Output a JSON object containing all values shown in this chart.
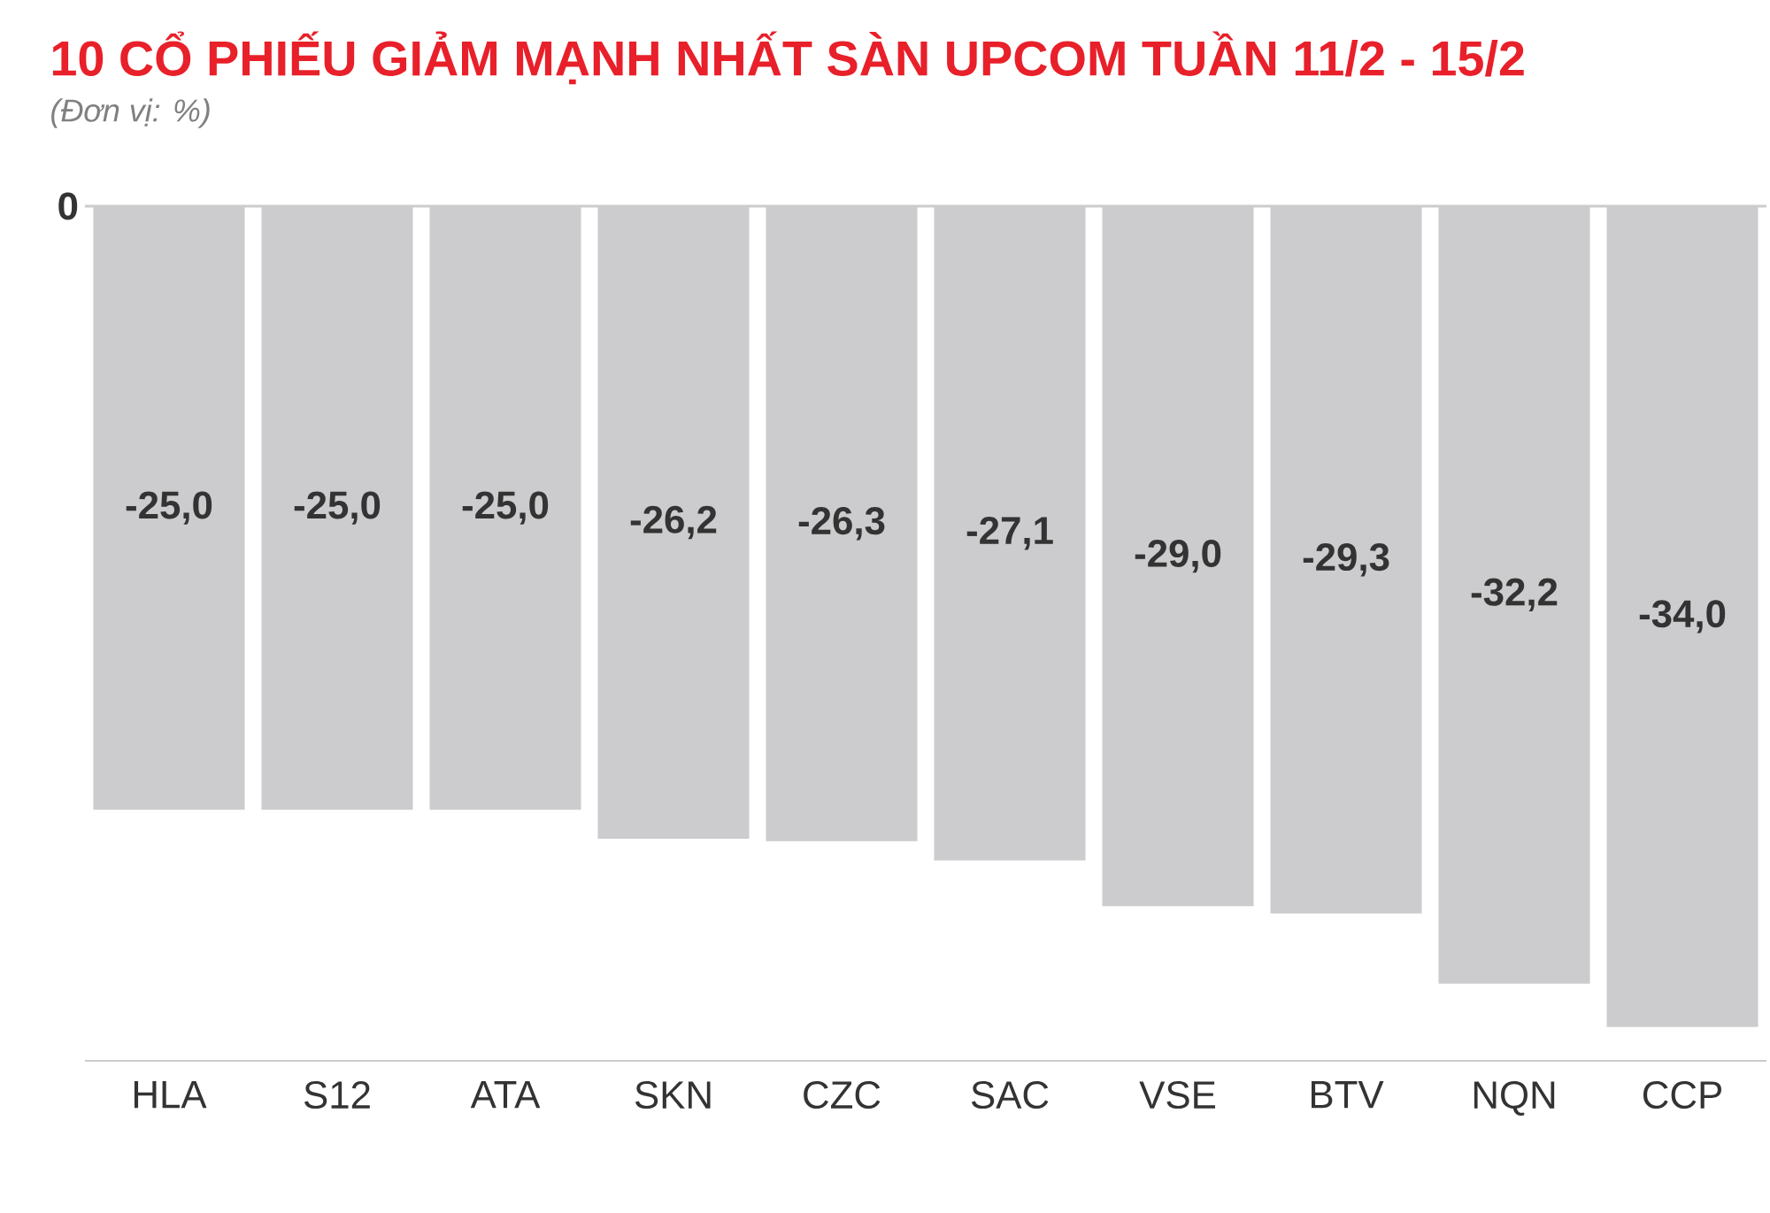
{
  "chart_data": {
    "type": "bar",
    "title": "10 CỔ PHIẾU GIẢM MẠNH NHẤT SÀN UPCOM TUẦN 11/2 - 15/2",
    "subtitle": "(Đơn vị: %)",
    "categories": [
      "HLA",
      "S12",
      "ATA",
      "SKN",
      "CZC",
      "SAC",
      "VSE",
      "BTV",
      "NQN",
      "CCP"
    ],
    "values": [
      -25.0,
      -25.0,
      -25.0,
      -26.2,
      -26.3,
      -27.1,
      -29.0,
      -29.3,
      -32.2,
      -34.0
    ],
    "value_labels": [
      "-25,0",
      "-25,0",
      "-25,0",
      "-26,2",
      "-26,3",
      "-27,1",
      "-29,0",
      "-29,3",
      "-32,2",
      "-34,0"
    ],
    "color": "#cccbcd",
    "ylim": [
      -35.4,
      0
    ],
    "ref_lines": [
      {
        "axis": "y",
        "value": 0,
        "label": "0",
        "color": "#cccccc"
      }
    ]
  }
}
